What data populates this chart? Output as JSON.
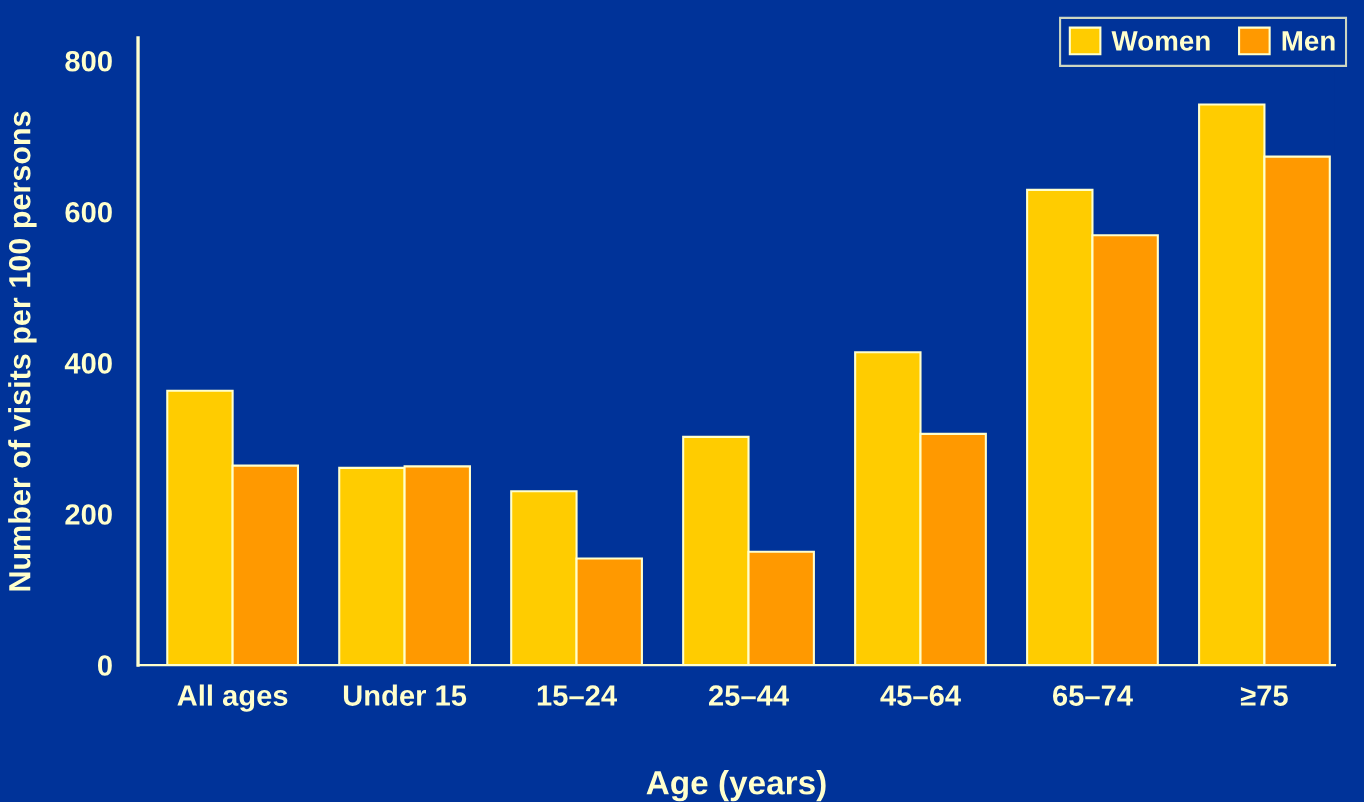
{
  "chart_data": {
    "type": "bar",
    "xlabel": "Age (years)",
    "ylabel": "Number of visits per 100 persons",
    "categories": [
      "All ages",
      "Under 15",
      "15–24",
      "25–44",
      "45–64",
      "65–74",
      "≥75"
    ],
    "series": [
      {
        "name": "Women",
        "color": "#ffcc00",
        "values": [
          363,
          261,
          230,
          302,
          414,
          629,
          742
        ]
      },
      {
        "name": "Men",
        "color": "#ff9900",
        "values": [
          264,
          263,
          141,
          150,
          306,
          569,
          673
        ]
      }
    ],
    "ylim": [
      0,
      830
    ],
    "yticks": [
      0,
      200,
      400,
      600,
      800
    ],
    "legend": "top right"
  }
}
